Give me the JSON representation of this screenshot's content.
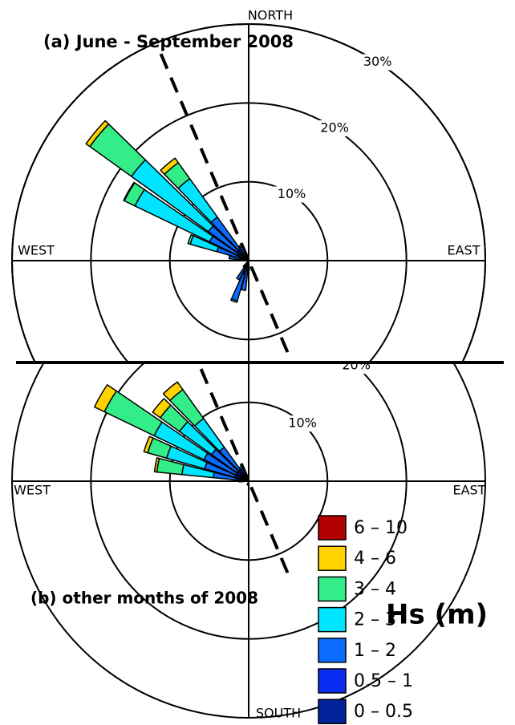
{
  "legend": {
    "title": "Hs (m)",
    "items": [
      {
        "label": "6 – 10",
        "color": "#b30000"
      },
      {
        "label": "4 – 6",
        "color": "#ffd200"
      },
      {
        "label": "3 – 4",
        "color": "#33ee88"
      },
      {
        "label": "2 – 3",
        "color": "#00e5ff"
      },
      {
        "label": "1 – 2",
        "color": "#0a6cff"
      },
      {
        "label": "0.5 – 1",
        "color": "#0a2cf0"
      },
      {
        "label": "0 – 0.5",
        "color": "#00239c"
      }
    ]
  },
  "chart_data": [
    {
      "type": "rose",
      "title": "(a) June - September 2008",
      "direction_labels": [
        "NORTH",
        "WEST",
        "EAST"
      ],
      "rlim": [
        0,
        30
      ],
      "rticks": [
        {
          "value": 10,
          "label": "10%"
        },
        {
          "value": 20,
          "label": "20%"
        },
        {
          "value": 30,
          "label": "30%"
        }
      ],
      "directions": [
        180,
        190,
        200,
        210,
        220,
        280,
        290,
        300,
        310,
        320,
        330,
        340
      ],
      "series": [
        {
          "values": [
            0,
            0,
            0,
            0,
            0,
            0,
            0,
            0,
            0,
            0,
            0,
            0
          ]
        },
        {
          "values": [
            0,
            0,
            0,
            0,
            0,
            0,
            0,
            0.1,
            0.6,
            0.7,
            0,
            0
          ]
        },
        {
          "values": [
            0,
            0,
            0,
            0,
            0,
            0,
            0.3,
            1.5,
            6.5,
            2.5,
            0,
            0
          ]
        },
        {
          "values": [
            0,
            0,
            0.2,
            0,
            0,
            0,
            3.5,
            10.5,
            12.0,
            6.0,
            0.2,
            0
          ]
        },
        {
          "values": [
            0.5,
            2.5,
            3.5,
            1.5,
            0.3,
            1.5,
            3.0,
            4.0,
            4.5,
            5.0,
            1.0,
            0.3
          ]
        },
        {
          "values": [
            0.5,
            1.0,
            1.5,
            1.0,
            0.5,
            0.8,
            1.0,
            1.2,
            1.5,
            1.5,
            0.8,
            0.5
          ]
        },
        {
          "values": [
            0.2,
            0.3,
            0.3,
            0.2,
            0.2,
            0.2,
            0.2,
            0.3,
            0.3,
            0.3,
            0.2,
            0.1
          ]
        }
      ]
    },
    {
      "type": "rose",
      "title": "(b) other months of 2008",
      "direction_labels": [
        "WEST",
        "EAST",
        "SOUTH"
      ],
      "rlim": [
        0,
        30
      ],
      "rticks": [
        {
          "value": 10,
          "label": "10%"
        },
        {
          "value": 20,
          "label": "20%"
        }
      ],
      "directions": [
        180,
        200,
        270,
        280,
        290,
        300,
        310,
        320,
        330,
        340
      ],
      "series": [
        {
          "values": [
            0,
            0,
            0,
            0,
            0,
            0,
            0,
            0,
            0,
            0
          ]
        },
        {
          "values": [
            0,
            0,
            0,
            0.3,
            0.5,
            1.4,
            1.2,
            1.2,
            0,
            0
          ]
        },
        {
          "values": [
            0,
            0,
            0,
            3.2,
            2.5,
            7.0,
            3.0,
            4.5,
            0,
            0
          ]
        },
        {
          "values": [
            0,
            0,
            0,
            4.0,
            5.0,
            7.0,
            5.0,
            4.5,
            0.3,
            0
          ]
        },
        {
          "values": [
            0,
            0,
            0.5,
            3.0,
            4.0,
            4.5,
            4.0,
            3.5,
            0.8,
            0.2
          ]
        },
        {
          "values": [
            0.3,
            0.2,
            0.5,
            1.2,
            1.5,
            1.5,
            1.5,
            1.5,
            0.8,
            0.3
          ]
        },
        {
          "values": [
            0.3,
            0.3,
            0.2,
            0.3,
            0.3,
            0.3,
            0.3,
            0.3,
            0.2,
            0.1
          ]
        }
      ]
    }
  ]
}
